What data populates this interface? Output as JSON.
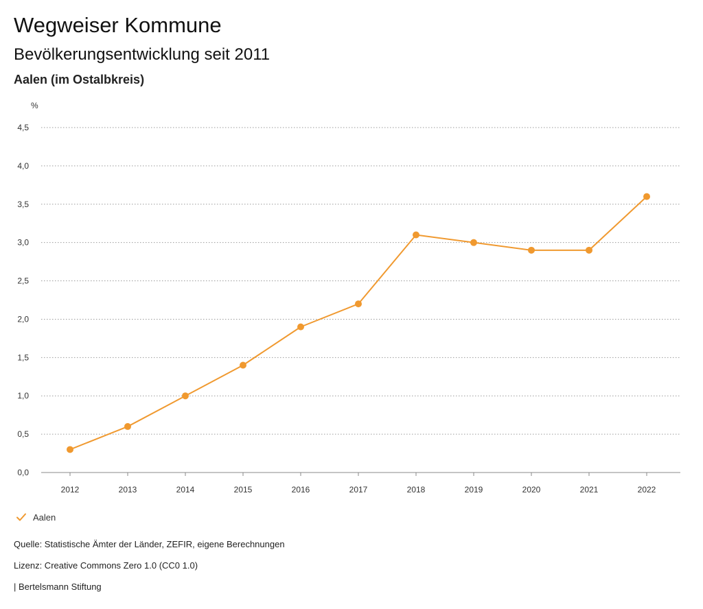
{
  "header": {
    "title": "Wegweiser Kommune",
    "subtitle": "Bevölkerungsentwicklung seit 2011",
    "region": "Aalen (im Ostalbkreis)"
  },
  "chart_data": {
    "type": "line",
    "title": "Bevölkerungsentwicklung seit 2011",
    "ylabel": "%",
    "xlabel": "",
    "ylim": [
      0,
      4.5
    ],
    "yticks": [
      "0,0",
      "0,5",
      "1,0",
      "1,5",
      "2,0",
      "2,5",
      "3,0",
      "3,5",
      "4,0",
      "4,5"
    ],
    "ytick_values": [
      0,
      0.5,
      1.0,
      1.5,
      2.0,
      2.5,
      3.0,
      3.5,
      4.0,
      4.5
    ],
    "categories": [
      "2012",
      "2013",
      "2014",
      "2015",
      "2016",
      "2017",
      "2018",
      "2019",
      "2020",
      "2021",
      "2022"
    ],
    "grid": true,
    "series": [
      {
        "name": "Aalen",
        "color": "#f0992f",
        "values": [
          0.3,
          0.6,
          1.0,
          1.4,
          1.9,
          2.2,
          3.1,
          3.0,
          2.9,
          2.9,
          3.6
        ]
      }
    ],
    "legend_position": "bottom-left"
  },
  "legend": {
    "label": "Aalen",
    "icon": "check-icon",
    "color": "#f0992f"
  },
  "footer": {
    "source": "Quelle: Statistische Ämter der Länder, ZEFIR, eigene Berechnungen",
    "license": "Lizenz: Creative Commons Zero 1.0 (CC0 1.0)",
    "brand": "| Bertelsmann Stiftung"
  }
}
